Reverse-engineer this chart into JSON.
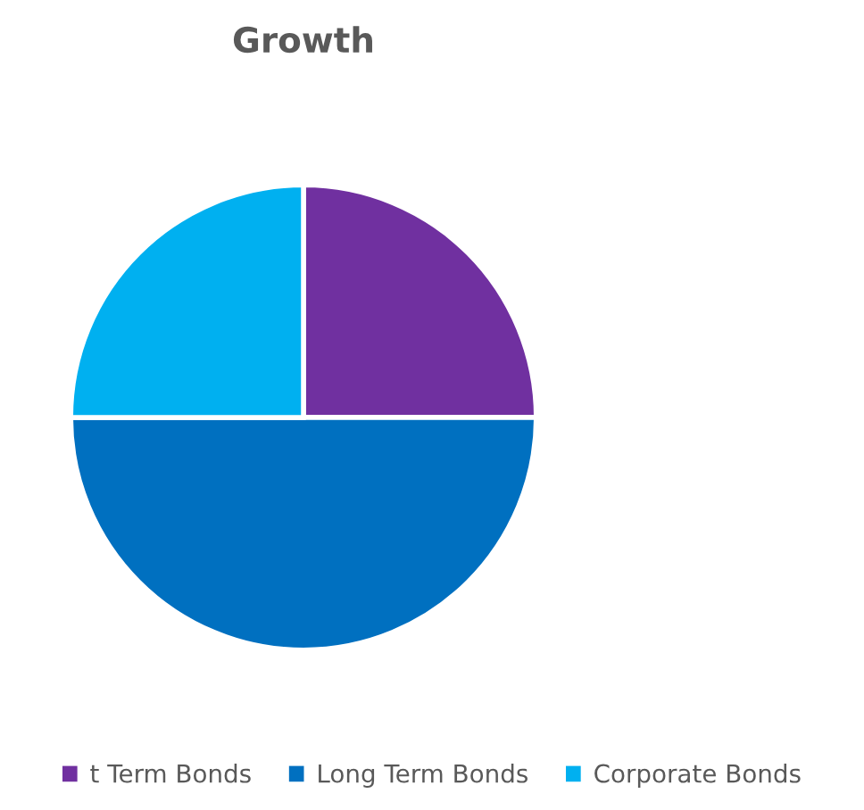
{
  "chart_data": {
    "type": "pie",
    "title": "Growth",
    "categories": [
      "t Term Bonds",
      "Long Term Bonds",
      "Corporate Bonds"
    ],
    "values": [
      25,
      50,
      25
    ],
    "colors": [
      "#7030a0",
      "#0070c0",
      "#00b0f0"
    ],
    "legend": "bottom"
  }
}
